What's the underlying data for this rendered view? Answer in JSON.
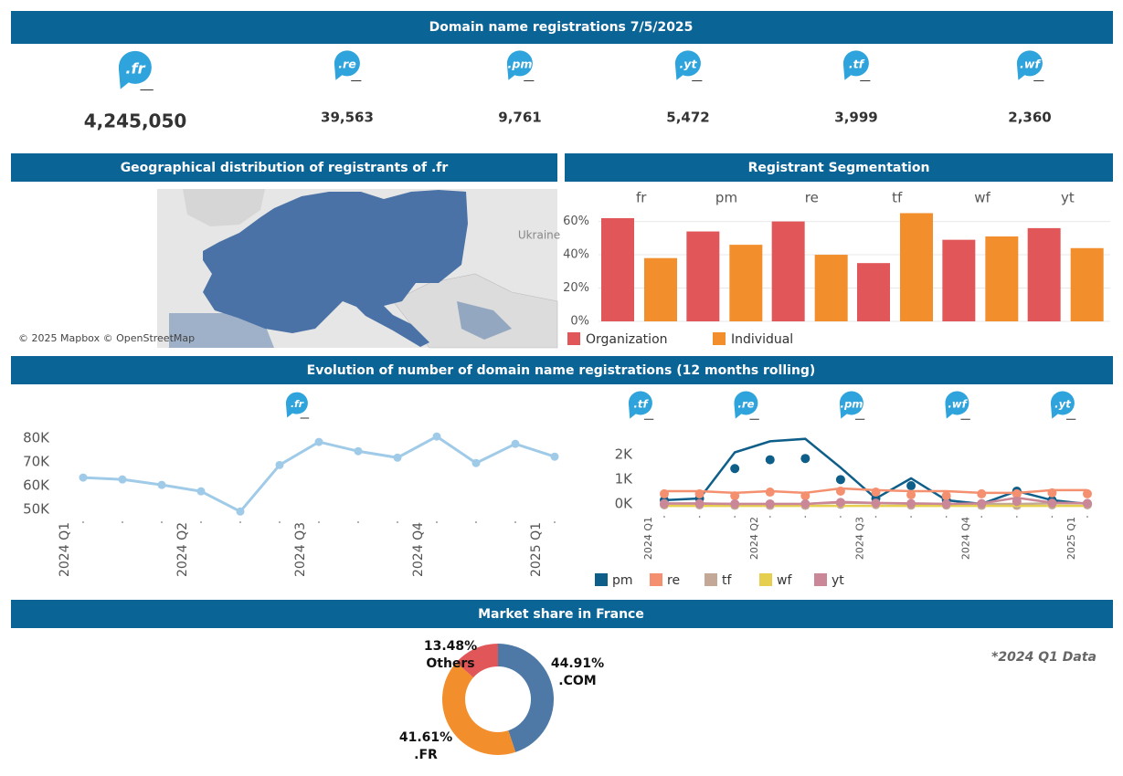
{
  "title": "Domain name registrations  7/5/2025",
  "kpis": [
    {
      "domain": ".fr",
      "value": "4,245,050"
    },
    {
      "domain": ".re",
      "value": "39,563"
    },
    {
      "domain": ".pm",
      "value": "9,761"
    },
    {
      "domain": ".yt",
      "value": "5,472"
    },
    {
      "domain": ".tf",
      "value": "3,999"
    },
    {
      "domain": ".wf",
      "value": "2,360"
    }
  ],
  "map": {
    "title": "Geographical distribution of registrants of .fr",
    "place": "Ukraine",
    "attribution": "© 2025 Mapbox © OpenStreetMap"
  },
  "evolution_title": "Evolution of number of domain name registrations (12 months rolling)",
  "market_title": "Market share in France",
  "note": "*2024 Q1 Data",
  "chart_data": [
    {
      "type": "bar",
      "title": "Registrant Segmentation",
      "categories": [
        "fr",
        "pm",
        "re",
        "tf",
        "wf",
        "yt"
      ],
      "series": [
        {
          "name": "Organization",
          "color": "#e15759",
          "values": [
            62,
            54,
            60,
            35,
            49,
            56
          ]
        },
        {
          "name": "Individual",
          "color": "#f28e2b",
          "values": [
            38,
            46,
            40,
            65,
            51,
            44
          ]
        }
      ],
      "ylim": [
        0,
        68
      ],
      "yticks": [
        {
          "value": 0,
          "label": "0%"
        },
        {
          "value": 20,
          "label": "20%"
        },
        {
          "value": 40,
          "label": "40%"
        },
        {
          "value": 60,
          "label": "60%"
        }
      ],
      "grid": true
    },
    {
      "type": "line",
      "icon": ".fr",
      "categories": [
        "2024 Q1",
        null,
        null,
        "2024 Q2",
        null,
        null,
        "2024 Q3",
        null,
        null,
        "2024 Q4",
        null,
        null,
        "2025 Q1"
      ],
      "series": [
        {
          "name": "fr",
          "color": "#a0cbe8",
          "values": [
            63500,
            62700,
            60400,
            57700,
            49200,
            68800,
            78500,
            74600,
            71900,
            80800,
            69600,
            77700,
            72300
          ]
        }
      ],
      "ylim": [
        47000,
        82000
      ],
      "yticks": [
        {
          "value": 50000,
          "label": "50K"
        },
        {
          "value": 60000,
          "label": "60K"
        },
        {
          "value": 70000,
          "label": "70K"
        },
        {
          "value": 80000,
          "label": "80K"
        }
      ]
    },
    {
      "type": "line",
      "icons": [
        ".tf",
        ".re",
        ".pm",
        ".wf",
        ".yt"
      ],
      "categories": [
        "2024 Q1",
        null,
        null,
        "2024 Q2",
        null,
        null,
        "2024 Q3",
        null,
        null,
        "2024 Q4",
        null,
        null,
        "2025 Q1"
      ],
      "series": [
        {
          "name": "pm",
          "color": "#0e5e8a",
          "values": [
            150,
            220,
            2100,
            2550,
            2650,
            1480,
            220,
            1040,
            150,
            0,
            520,
            150,
            0
          ],
          "dots": [
            150,
            220,
            1440,
            1800,
            1850,
            990,
            220,
            740,
            150,
            0,
            520,
            150,
            0
          ]
        },
        {
          "name": "re",
          "color": "#f4906f",
          "values": [
            520,
            520,
            450,
            520,
            450,
            630,
            560,
            520,
            520,
            450,
            450,
            560,
            560
          ],
          "dots": [
            410,
            410,
            330,
            480,
            330,
            520,
            480,
            370,
            330,
            410,
            410,
            450,
            410
          ]
        },
        {
          "name": "tf",
          "color": "#c2a895",
          "values": [
            20,
            20,
            0,
            0,
            0,
            50,
            30,
            0,
            0,
            0,
            0,
            20,
            20
          ],
          "dots": [
            -40,
            -40,
            -60,
            -60,
            -60,
            -20,
            -30,
            -50,
            -50,
            -60,
            -60,
            -40,
            -40
          ]
        },
        {
          "name": "wf",
          "color": "#e6cf4f",
          "values": [
            -80,
            -80,
            -80,
            -80,
            -80,
            -80,
            -80,
            -80,
            -80,
            -80,
            -80,
            -80,
            -80
          ]
        },
        {
          "name": "yt",
          "color": "#c98797",
          "values": [
            10,
            10,
            0,
            0,
            0,
            80,
            40,
            20,
            0,
            20,
            250,
            50,
            30
          ],
          "dots": [
            10,
            10,
            0,
            0,
            0,
            60,
            30,
            10,
            0,
            10,
            100,
            30,
            20
          ]
        }
      ],
      "ylim": [
        -300,
        2900
      ],
      "yticks": [
        {
          "value": 0,
          "label": "0K"
        },
        {
          "value": 1000,
          "label": "1K"
        },
        {
          "value": 2000,
          "label": "2K"
        }
      ]
    },
    {
      "type": "pie",
      "categories": [
        ".COM",
        ".FR",
        "Others"
      ],
      "values": [
        44.91,
        41.61,
        13.48
      ],
      "value_labels": [
        "44.91%",
        "41.61%",
        "13.48%"
      ],
      "colors": [
        "#4e79a7",
        "#f28e2b",
        "#e15759"
      ]
    }
  ]
}
